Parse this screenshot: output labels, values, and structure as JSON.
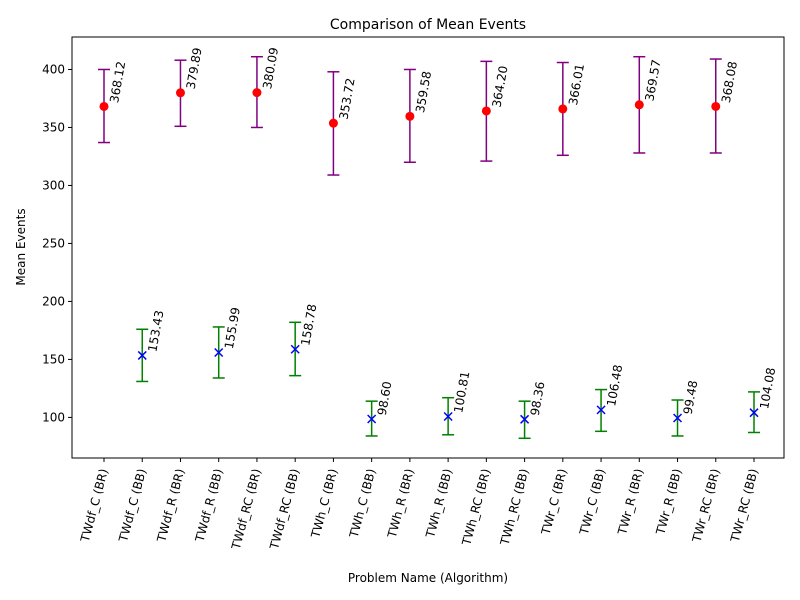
{
  "chart_data": {
    "type": "scatter",
    "title": "Comparison of Mean Events",
    "xlabel": "Problem Name (Algorithm)",
    "ylabel": "Mean Events",
    "ylim": [
      65,
      428
    ],
    "yticks": [
      100,
      150,
      200,
      250,
      300,
      350,
      400
    ],
    "grid": false,
    "categories": [
      "TWdf_C (BR)",
      "TWdf_C (BB)",
      "TWdf_R (BR)",
      "TWdf_R (BB)",
      "TWdf_RC (BR)",
      "TWdf_RC (BB)",
      "TWh_C (BR)",
      "TWh_C (BB)",
      "TWh_R (BR)",
      "TWh_R (BB)",
      "TWh_RC (BR)",
      "TWh_RC (BB)",
      "TWr_C (BR)",
      "TWr_C (BB)",
      "TWr_R (BR)",
      "TWr_R (BB)",
      "TWr_RC (BR)",
      "TWr_RC (BB)"
    ],
    "series": [
      {
        "algorithm": "BR",
        "marker": "circle",
        "marker_color": "#ff0000",
        "errorbar_color": "#800080",
        "points": [
          {
            "category": "TWdf_C (BR)",
            "mean": 368.12,
            "label": "368.12",
            "err_low": 337,
            "err_high": 400
          },
          {
            "category": "TWdf_R (BR)",
            "mean": 379.89,
            "label": "379.89",
            "err_low": 351,
            "err_high": 408
          },
          {
            "category": "TWdf_RC (BR)",
            "mean": 380.09,
            "label": "380.09",
            "err_low": 350,
            "err_high": 411
          },
          {
            "category": "TWh_C (BR)",
            "mean": 353.72,
            "label": "353.72",
            "err_low": 309,
            "err_high": 398
          },
          {
            "category": "TWh_R (BR)",
            "mean": 359.58,
            "label": "359.58",
            "err_low": 320,
            "err_high": 400
          },
          {
            "category": "TWh_RC (BR)",
            "mean": 364.2,
            "label": "364.20",
            "err_low": 321,
            "err_high": 407
          },
          {
            "category": "TWr_C (BR)",
            "mean": 366.01,
            "label": "366.01",
            "err_low": 326,
            "err_high": 406
          },
          {
            "category": "TWr_R (BR)",
            "mean": 369.57,
            "label": "369.57",
            "err_low": 328,
            "err_high": 411
          },
          {
            "category": "TWr_RC (BR)",
            "mean": 368.08,
            "label": "368.08",
            "err_low": 328,
            "err_high": 409
          }
        ]
      },
      {
        "algorithm": "BB",
        "marker": "x",
        "marker_color": "#0000ff",
        "errorbar_color": "#008000",
        "points": [
          {
            "category": "TWdf_C (BB)",
            "mean": 153.43,
            "label": "153.43",
            "err_low": 131,
            "err_high": 176
          },
          {
            "category": "TWdf_R (BB)",
            "mean": 155.99,
            "label": "155.99",
            "err_low": 134,
            "err_high": 178
          },
          {
            "category": "TWdf_RC (BB)",
            "mean": 158.78,
            "label": "158.78",
            "err_low": 136,
            "err_high": 182
          },
          {
            "category": "TWh_C (BB)",
            "mean": 98.6,
            "label": "98.60",
            "err_low": 84,
            "err_high": 114
          },
          {
            "category": "TWh_R (BB)",
            "mean": 100.81,
            "label": "100.81",
            "err_low": 85,
            "err_high": 117
          },
          {
            "category": "TWh_RC (BB)",
            "mean": 98.36,
            "label": "98.36",
            "err_low": 82,
            "err_high": 114
          },
          {
            "category": "TWr_C (BB)",
            "mean": 106.48,
            "label": "106.48",
            "err_low": 88,
            "err_high": 124
          },
          {
            "category": "TWr_R (BB)",
            "mean": 99.48,
            "label": "99.48",
            "err_low": 84,
            "err_high": 115
          },
          {
            "category": "TWr_RC (BB)",
            "mean": 104.08,
            "label": "104.08",
            "err_low": 87,
            "err_high": 122
          }
        ]
      }
    ]
  }
}
